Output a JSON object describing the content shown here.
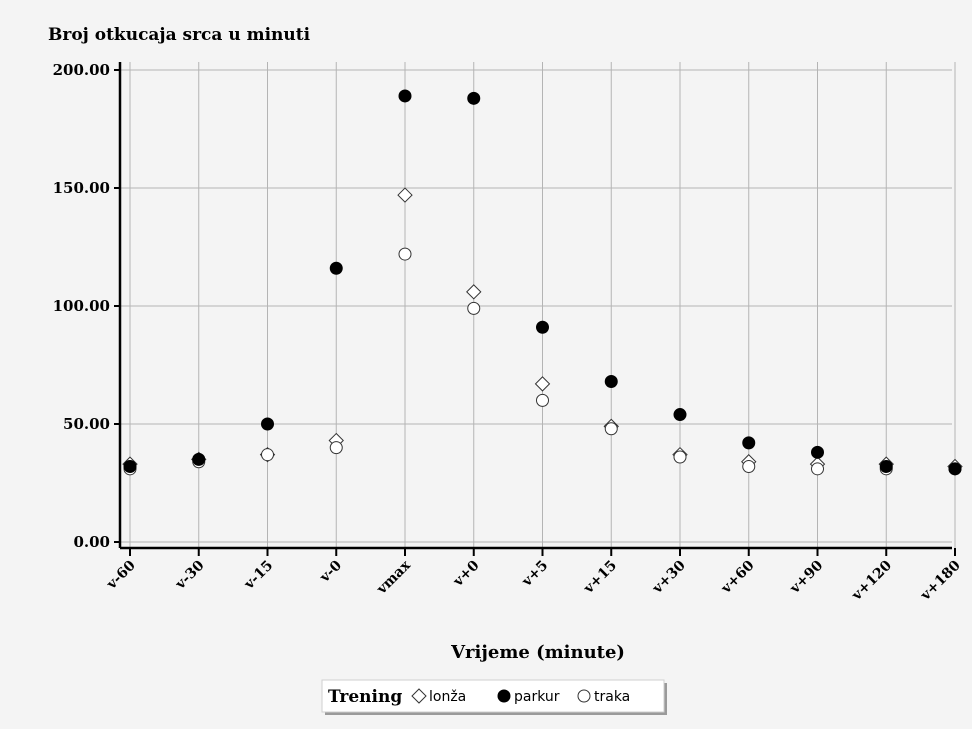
{
  "chart_data": {
    "type": "scatter",
    "title": "Broj otkucaja srca u minuti",
    "xlabel": "Vrijeme (minute)",
    "ylabel": "Broj otkucaja srca u minuti",
    "categories": [
      "v-60",
      "v-30",
      "v-15",
      "v-0",
      "vmax",
      "v+0",
      "v+5",
      "v+15",
      "v+30",
      "v+60",
      "v+90",
      "v+120",
      "v+180"
    ],
    "ylim": [
      0,
      200
    ],
    "yticks": [
      "0.00",
      "50.00",
      "100.00",
      "150.00",
      "200.00"
    ],
    "grid": true,
    "legend": {
      "title": "Trening",
      "position": "bottom-center",
      "entries": [
        "lonža",
        "parkur",
        "traka"
      ]
    },
    "series": [
      {
        "name": "lonža",
        "marker": "diamond-open",
        "values": [
          33,
          35,
          37,
          43,
          147,
          106,
          67,
          49,
          37,
          34,
          33,
          33,
          32
        ]
      },
      {
        "name": "parkur",
        "marker": "circle-filled",
        "values": [
          32,
          35,
          50,
          116,
          189,
          188,
          91,
          68,
          54,
          42,
          38,
          32,
          31
        ]
      },
      {
        "name": "traka",
        "marker": "circle-open",
        "values": [
          31,
          34,
          37,
          40,
          122,
          99,
          60,
          48,
          36,
          32,
          31,
          31,
          31
        ]
      }
    ]
  }
}
